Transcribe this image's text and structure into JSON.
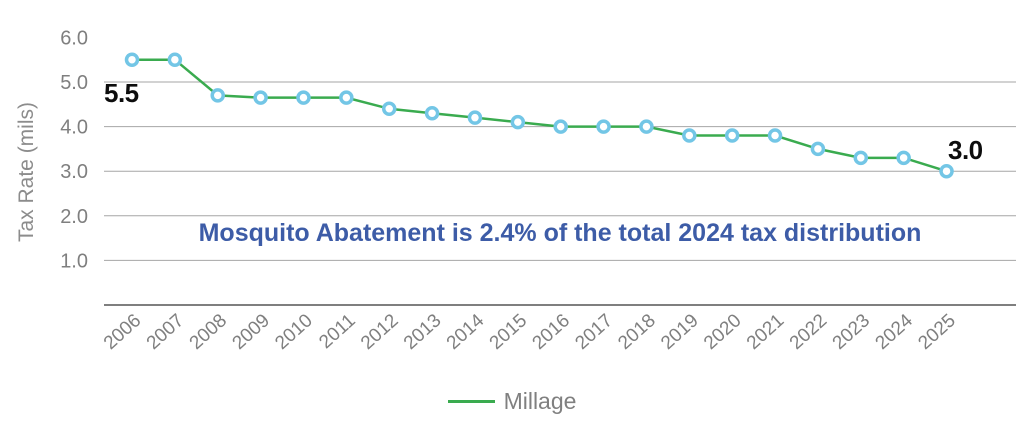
{
  "chart_data": {
    "type": "line",
    "title": "",
    "xlabel": "",
    "ylabel": "Tax Rate (mils)",
    "categories": [
      "2006",
      "2007",
      "2008",
      "2009",
      "2010",
      "2011",
      "2012",
      "2013",
      "2014",
      "2015",
      "2016",
      "2017",
      "2018",
      "2019",
      "2020",
      "2021",
      "2022",
      "2023",
      "2024",
      "2025"
    ],
    "series": [
      {
        "name": "Millage",
        "values": [
          5.5,
          5.5,
          4.7,
          4.65,
          4.65,
          4.65,
          4.4,
          4.3,
          4.2,
          4.1,
          4.0,
          4.0,
          4.0,
          3.8,
          3.8,
          3.8,
          3.5,
          3.3,
          3.3,
          3.0
        ]
      }
    ],
    "y_ticks": [
      {
        "value": 1.0,
        "label": "1.0",
        "gridline": true
      },
      {
        "value": 2.0,
        "label": "2.0",
        "gridline": true
      },
      {
        "value": 3.0,
        "label": "3.0",
        "gridline": true
      },
      {
        "value": 4.0,
        "label": "4.0",
        "gridline": true
      },
      {
        "value": 5.0,
        "label": "5.0",
        "gridline": true
      },
      {
        "value": 6.0,
        "label": "6.0",
        "gridline": false
      }
    ],
    "ylim": [
      0,
      6.5
    ],
    "grid": "horizontal",
    "legend_position": "bottom",
    "annotation": "Mosquito Abatement is 2.4% of the total 2024 tax distribution",
    "point_labels": [
      {
        "category": "2006",
        "text": "5.5"
      },
      {
        "category": "2025",
        "text": "3.0"
      }
    ]
  },
  "colors": {
    "line": "#3aab4f",
    "marker_ring": "#73c6e6",
    "marker_fill": "#ffffff",
    "gridline": "#a6a6a6",
    "axis_line": "#7f7f7f",
    "tick_text": "#7f7f7f",
    "axis_title_text": "#8c8c8c",
    "annotation_text": "#3d5ca7",
    "data_label_text": "#0d0d0d"
  }
}
